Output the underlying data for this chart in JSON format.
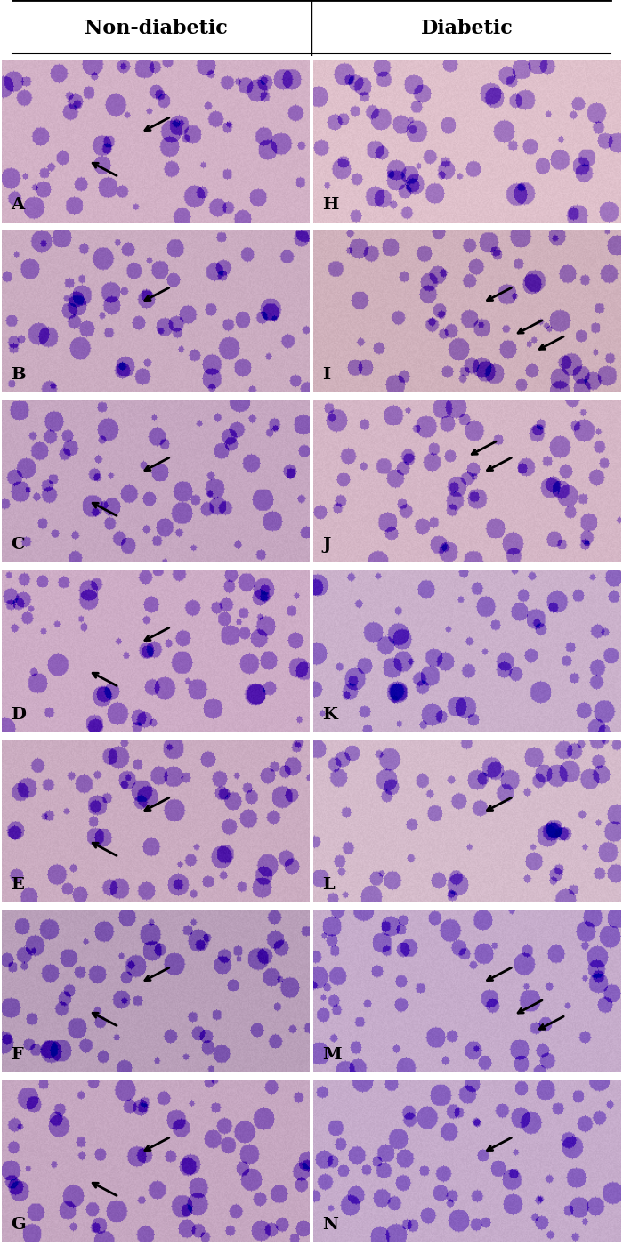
{
  "title_left": "Non-diabetic",
  "title_right": "Diabetic",
  "labels_left": [
    "A",
    "B",
    "C",
    "D",
    "E",
    "F",
    "G"
  ],
  "labels_right": [
    "H",
    "I",
    "J",
    "K",
    "L",
    "M",
    "N"
  ],
  "n_rows": 7,
  "n_cols": 2,
  "fig_width": 7.0,
  "fig_height": 14.0,
  "header_bg": "#ffffff",
  "header_fontsize": 16,
  "label_fontsize": 14,
  "title_line_color": "#000000",
  "background_color": "#ffffff",
  "cell_bg_left": [
    "#d8bfce",
    "#c8b0c0",
    "#cba8c2",
    "#d4a8c8",
    "#cba8c0",
    "#b89ab0",
    "#c0a0b8"
  ],
  "cell_bg_right": [
    "#e8d0d8",
    "#d4b8c0",
    "#d8c0c8",
    "#cdb8cc",
    "#d8c0d0",
    "#c8b0c8",
    "#c8b0c8"
  ]
}
